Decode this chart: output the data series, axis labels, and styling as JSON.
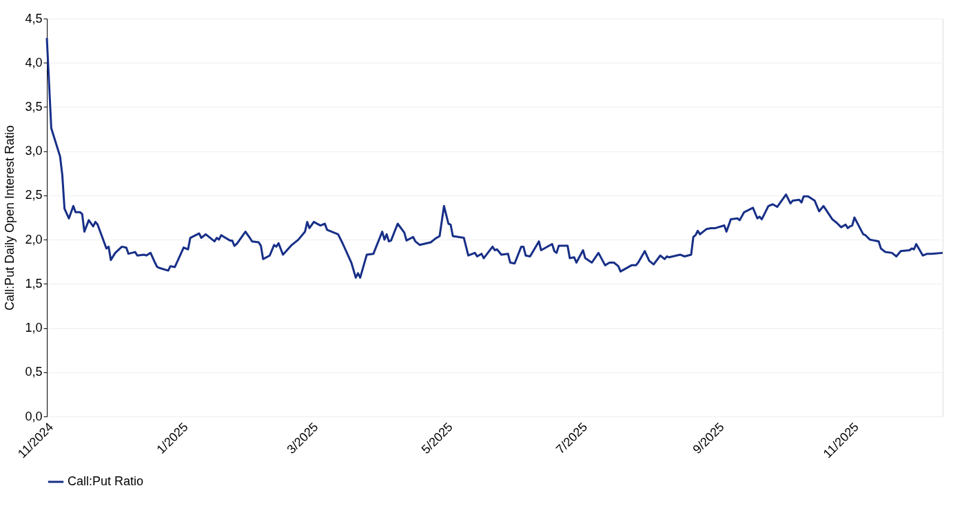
{
  "chart_data": {
    "type": "line",
    "ylabel": "Call:Put Daily Open Interest Ratio",
    "x": [
      "2024-11-01",
      "2024-11-03",
      "2024-11-07",
      "2024-11-08",
      "2024-11-09",
      "2024-11-11",
      "2024-11-13",
      "2024-11-14",
      "2024-11-16",
      "2024-11-17",
      "2024-11-18",
      "2024-11-20",
      "2024-11-22",
      "2024-11-23",
      "2024-11-24",
      "2024-11-28",
      "2024-11-29",
      "2024-11-30",
      "2024-12-02",
      "2024-12-05",
      "2024-12-07",
      "2024-12-08",
      "2024-12-11",
      "2024-12-12",
      "2024-12-15",
      "2024-12-16",
      "2024-12-18",
      "2024-12-20",
      "2024-12-21",
      "2024-12-22",
      "2024-12-26",
      "2024-12-27",
      "2024-12-29",
      "2025-01-02",
      "2025-01-04",
      "2025-01-05",
      "2025-01-09",
      "2025-01-10",
      "2025-01-12",
      "2025-01-16",
      "2025-01-17",
      "2025-01-18",
      "2025-01-19",
      "2025-01-23",
      "2025-01-24",
      "2025-01-25",
      "2025-01-26",
      "2025-01-30",
      "2025-02-01",
      "2025-02-02",
      "2025-02-05",
      "2025-02-06",
      "2025-02-07",
      "2025-02-10",
      "2025-02-12",
      "2025-02-13",
      "2025-02-14",
      "2025-02-16",
      "2025-02-20",
      "2025-02-23",
      "2025-02-26",
      "2025-02-27",
      "2025-02-28",
      "2025-03-02",
      "2025-03-05",
      "2025-03-07",
      "2025-03-08",
      "2025-03-13",
      "2025-03-15",
      "2025-03-19",
      "2025-03-21",
      "2025-03-22",
      "2025-03-23",
      "2025-03-26",
      "2025-03-29",
      "2025-04-02",
      "2025-04-03",
      "2025-04-04",
      "2025-04-05",
      "2025-04-06",
      "2025-04-09",
      "2025-04-12",
      "2025-04-13",
      "2025-04-16",
      "2025-04-17",
      "2025-04-19",
      "2025-04-24",
      "2025-04-26",
      "2025-04-28",
      "2025-04-30",
      "2025-05-02",
      "2025-05-03",
      "2025-05-04",
      "2025-05-09",
      "2025-05-11",
      "2025-05-14",
      "2025-05-15",
      "2025-05-17",
      "2025-05-18",
      "2025-05-22",
      "2025-05-23",
      "2025-05-24",
      "2025-05-26",
      "2025-05-29",
      "2025-05-30",
      "2025-06-01",
      "2025-06-04",
      "2025-06-05",
      "2025-06-06",
      "2025-06-08",
      "2025-06-12",
      "2025-06-13",
      "2025-06-18",
      "2025-06-19",
      "2025-06-20",
      "2025-06-21",
      "2025-06-25",
      "2025-06-26",
      "2025-06-28",
      "2025-06-29",
      "2025-07-02",
      "2025-07-03",
      "2025-07-06",
      "2025-07-09",
      "2025-07-12",
      "2025-07-14",
      "2025-07-16",
      "2025-07-18",
      "2025-07-19",
      "2025-07-24",
      "2025-07-26",
      "2025-07-27",
      "2025-07-30",
      "2025-08-01",
      "2025-08-03",
      "2025-08-06",
      "2025-08-08",
      "2025-08-09",
      "2025-08-10",
      "2025-08-15",
      "2025-08-17",
      "2025-08-20",
      "2025-08-21",
      "2025-08-22",
      "2025-08-23",
      "2025-08-24",
      "2025-08-27",
      "2025-08-29",
      "2025-08-31",
      "2025-09-04",
      "2025-09-05",
      "2025-09-07",
      "2025-09-10",
      "2025-09-11",
      "2025-09-13",
      "2025-09-17",
      "2025-09-19",
      "2025-09-20",
      "2025-09-21",
      "2025-09-24",
      "2025-09-26",
      "2025-09-28",
      "2025-10-02",
      "2025-10-04",
      "2025-10-05",
      "2025-10-08",
      "2025-10-09",
      "2025-10-10",
      "2025-10-12",
      "2025-10-15",
      "2025-10-17",
      "2025-10-19",
      "2025-10-23",
      "2025-10-25",
      "2025-10-27",
      "2025-10-29",
      "2025-10-30",
      "2025-10-31",
      "2025-11-01",
      "2025-11-02",
      "2025-11-06",
      "2025-11-07",
      "2025-11-09",
      "2025-11-13",
      "2025-11-14",
      "2025-11-16",
      "2025-11-19",
      "2025-11-21",
      "2025-11-23",
      "2025-11-27",
      "2025-11-28",
      "2025-11-29",
      "2025-11-30",
      "2025-12-03",
      "2025-12-05",
      "2025-12-07",
      "2025-12-12"
    ],
    "series": [
      {
        "name": "Call:Put Ratio",
        "color": "#172f87",
        "values": [
          4.28,
          3.26,
          2.94,
          2.73,
          2.35,
          2.24,
          2.38,
          2.31,
          2.31,
          2.29,
          2.09,
          2.22,
          2.15,
          2.2,
          2.17,
          1.9,
          1.92,
          1.77,
          1.85,
          1.92,
          1.91,
          1.84,
          1.86,
          1.82,
          1.83,
          1.82,
          1.85,
          1.74,
          1.69,
          1.68,
          1.65,
          1.7,
          1.69,
          1.91,
          1.89,
          2.02,
          2.07,
          2.02,
          2.06,
          1.98,
          2.02,
          2.0,
          2.05,
          1.99,
          1.99,
          1.93,
          1.95,
          2.09,
          2.02,
          1.98,
          1.97,
          1.93,
          1.78,
          1.82,
          1.94,
          1.92,
          1.96,
          1.83,
          1.94,
          2.0,
          2.09,
          2.2,
          2.13,
          2.2,
          2.16,
          2.18,
          2.11,
          2.06,
          1.96,
          1.74,
          1.57,
          1.62,
          1.57,
          1.83,
          1.84,
          2.09,
          2.0,
          2.06,
          1.98,
          1.99,
          2.18,
          2.08,
          1.99,
          2.03,
          1.98,
          1.94,
          1.97,
          2.01,
          2.04,
          2.38,
          2.18,
          2.17,
          2.04,
          2.02,
          1.82,
          1.85,
          1.81,
          1.84,
          1.79,
          1.92,
          1.88,
          1.89,
          1.83,
          1.84,
          1.74,
          1.73,
          1.92,
          1.92,
          1.82,
          1.81,
          1.98,
          1.88,
          1.95,
          1.87,
          1.85,
          1.93,
          1.93,
          1.79,
          1.8,
          1.74,
          1.88,
          1.79,
          1.74,
          1.85,
          1.71,
          1.74,
          1.74,
          1.7,
          1.64,
          1.71,
          1.71,
          1.74,
          1.87,
          1.76,
          1.72,
          1.82,
          1.78,
          1.81,
          1.8,
          1.83,
          1.81,
          1.83,
          2.03,
          2.05,
          2.1,
          2.06,
          2.12,
          2.13,
          2.13,
          2.16,
          2.09,
          2.23,
          2.24,
          2.22,
          2.31,
          2.36,
          2.24,
          2.26,
          2.23,
          2.38,
          2.4,
          2.37,
          2.51,
          2.41,
          2.44,
          2.45,
          2.42,
          2.49,
          2.49,
          2.44,
          2.32,
          2.38,
          2.23,
          2.19,
          2.14,
          2.17,
          2.13,
          2.15,
          2.16,
          2.25,
          2.06,
          2.05,
          2.0,
          1.98,
          1.9,
          1.86,
          1.85,
          1.81,
          1.87,
          1.88,
          1.9,
          1.89,
          1.95,
          1.82,
          1.84,
          1.84,
          1.85
        ]
      }
    ],
    "xlim": [
      "2024-11-01",
      "2025-12-12"
    ],
    "xticks": [
      {
        "value": "2024-11-01",
        "label": "11/2024"
      },
      {
        "value": "2025-01-01",
        "label": "1/2025"
      },
      {
        "value": "2025-03-01",
        "label": "3/2025"
      },
      {
        "value": "2025-05-01",
        "label": "5/2025"
      },
      {
        "value": "2025-07-01",
        "label": "7/2025"
      },
      {
        "value": "2025-09-01",
        "label": "9/2025"
      },
      {
        "value": "2025-11-01",
        "label": "11/2025"
      }
    ],
    "ylim": [
      0,
      4.5
    ],
    "yticks": [
      {
        "value": 0,
        "label": "0,0"
      },
      {
        "value": 0.5,
        "label": "0,5"
      },
      {
        "value": 1,
        "label": "1,0"
      },
      {
        "value": 1.5,
        "label": "1,5"
      },
      {
        "value": 2,
        "label": "2,0"
      },
      {
        "value": 2.5,
        "label": "2,5"
      },
      {
        "value": 3,
        "label": "3,0"
      },
      {
        "value": 3.5,
        "label": "3,5"
      },
      {
        "value": 4,
        "label": "4,0"
      },
      {
        "value": 4.5,
        "label": "4,5"
      }
    ],
    "grid": "y",
    "legend": "bottom",
    "line_style": "solid",
    "marker": "none"
  }
}
